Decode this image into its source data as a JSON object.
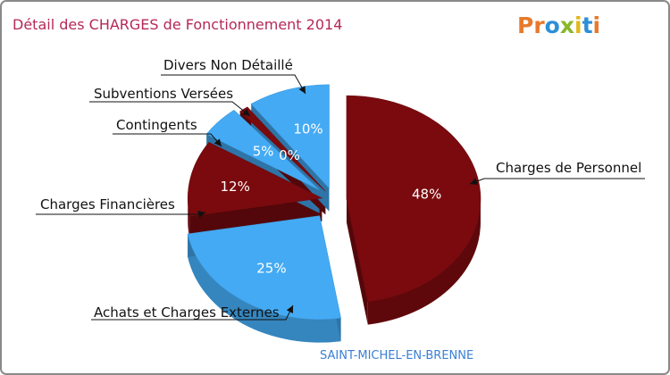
{
  "chart_data": {
    "type": "pie",
    "title": "Détail des CHARGES de Fonctionnement 2014",
    "subtitle": "SAINT-MICHEL-EN-BRENNE",
    "brand": "Proxiti",
    "colors": {
      "dark": "#7a0a0e",
      "light": "#44aaf4",
      "title": "#b5285a",
      "subtitle": "#3a7fd6"
    },
    "slices": [
      {
        "label": "Charges de Personnel",
        "pct_label": "48%",
        "value": 48,
        "color": "#7a0a0e"
      },
      {
        "label": "Achats et Charges Externes",
        "pct_label": "25%",
        "value": 25,
        "color": "#44aaf4"
      },
      {
        "label": "Charges Financières",
        "pct_label": "12%",
        "value": 12,
        "color": "#7a0a0e"
      },
      {
        "label": "Contingents",
        "pct_label": "5%",
        "value": 5,
        "color": "#44aaf4"
      },
      {
        "label": "Subventions Versées",
        "pct_label": "0%",
        "value": 0,
        "color": "#7a0a0e"
      },
      {
        "label": "Divers Non Détaillé",
        "pct_label": "10%",
        "value": 10,
        "color": "#44aaf4"
      }
    ]
  }
}
